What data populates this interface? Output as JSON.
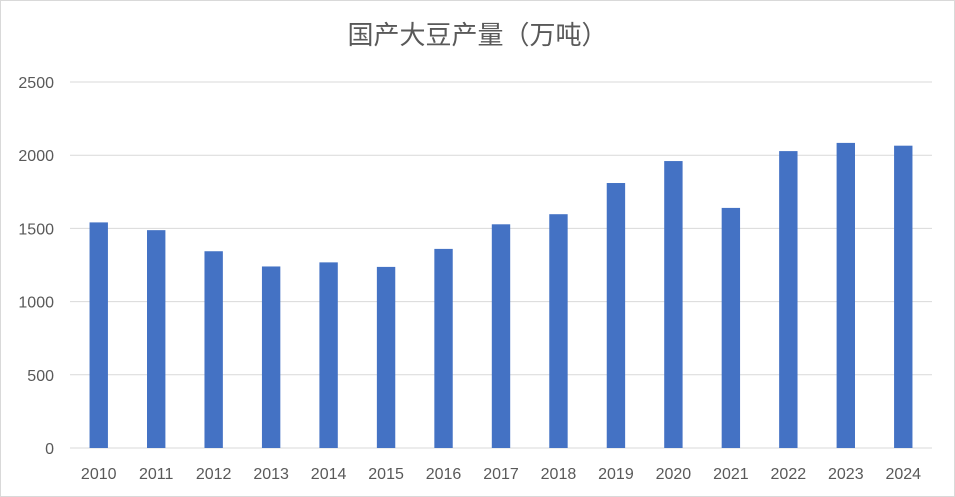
{
  "chart_data": {
    "type": "bar",
    "title": "国产大豆产量（万吨）",
    "categories": [
      "2010",
      "2011",
      "2012",
      "2013",
      "2014",
      "2015",
      "2016",
      "2017",
      "2018",
      "2019",
      "2020",
      "2021",
      "2022",
      "2023",
      "2024"
    ],
    "values": [
      1541,
      1488,
      1344,
      1240,
      1268,
      1237,
      1360,
      1528,
      1597,
      1810,
      1960,
      1640,
      2028,
      2084,
      2065
    ],
    "ylim": [
      0,
      2500
    ],
    "yticks": [
      0,
      500,
      1000,
      1500,
      2000,
      2500
    ],
    "xlabel": "",
    "ylabel": "",
    "grid": true,
    "legend": "none",
    "bar_color": "#4472C4",
    "grid_color": "#d9d9d9",
    "text_color": "#595959"
  }
}
